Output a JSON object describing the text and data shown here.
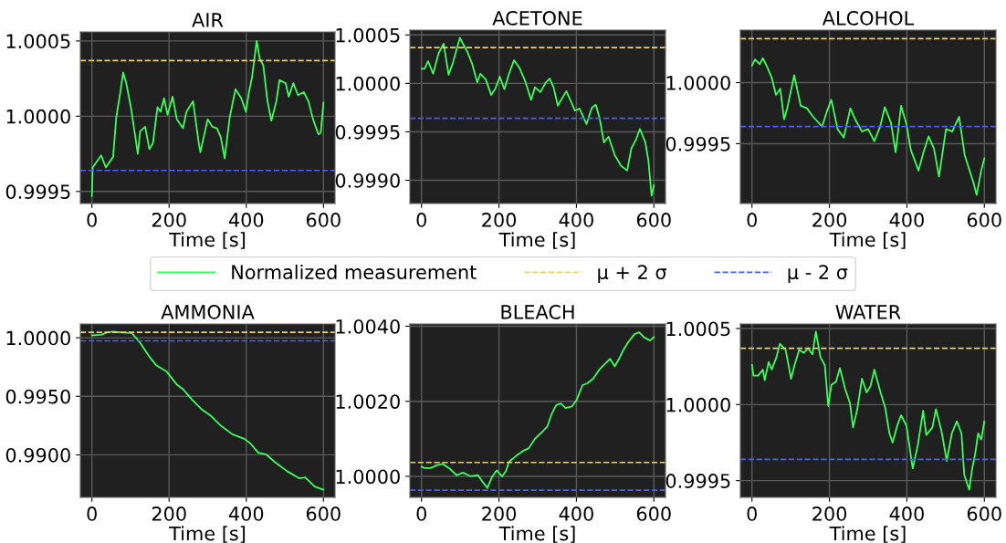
{
  "chart_data": [
    {
      "type": "line",
      "title": "AIR",
      "xlabel": "Time [s]",
      "xlim": [
        -30,
        630
      ],
      "xticks": [
        0,
        200,
        400,
        600
      ],
      "ylim": [
        0.99942,
        1.00056
      ],
      "yticks": [
        {
          "value": 0.9995,
          "label": "0.9995"
        },
        {
          "value": 1.0,
          "label": "1.0000"
        },
        {
          "value": 1.0005,
          "label": "1.0005"
        }
      ],
      "grid": true,
      "legend": "bottom",
      "series": [
        {
          "name": "Normalized measurement",
          "color": "#39ff5a",
          "x": [
            0,
            2,
            24,
            36,
            55,
            63,
            73,
            81,
            89,
            101,
            119,
            125,
            138,
            149,
            158,
            170,
            178,
            187,
            196,
            209,
            220,
            236,
            245,
            262,
            277,
            281,
            300,
            312,
            324,
            334,
            344,
            357,
            372,
            387,
            399,
            407,
            415,
            427,
            435,
            444,
            455,
            465,
            478,
            486,
            502,
            510,
            522,
            534,
            549,
            561,
            573,
            587,
            593,
            600
          ],
          "values": [
            0.99947,
            0.99966,
            0.99974,
            0.99966,
            0.99973,
            0.99999,
            1.00015,
            1.00029,
            1.00022,
            1.00006,
            0.99975,
            0.9999,
            0.99993,
            0.99978,
            0.99982,
            1.00006,
            1.00003,
            1.00012,
            1.00001,
            1.00013,
            0.99998,
            0.99992,
            1.00003,
            1.0001,
            0.99982,
            0.99976,
            0.99998,
            0.99993,
            0.99992,
            0.99986,
            0.99972,
            0.99999,
            1.00018,
            1.00012,
            1.00003,
            1.00016,
            1.00026,
            1.0005,
            1.00038,
            1.00034,
            1.0001,
            0.99997,
            1.0001,
            1.00024,
            1.00022,
            1.00013,
            1.00022,
            1.00014,
            1.00016,
            1.0001,
            0.99998,
            0.99988,
            0.99989,
            1.00009
          ]
        }
      ],
      "ref_lines": [
        {
          "axis": "y",
          "value": 1.00037,
          "label": "μ + 2 σ",
          "color": "#e6d36a",
          "line_style": "dashed"
        },
        {
          "axis": "y",
          "value": 0.99964,
          "label": "μ - 2 σ",
          "color": "#4a5cff",
          "line_style": "dashed"
        }
      ]
    },
    {
      "type": "line",
      "title": "ACETONE",
      "xlabel": "Time [s]",
      "xlim": [
        -30,
        630
      ],
      "xticks": [
        0,
        200,
        400,
        600
      ],
      "ylim": [
        0.99876,
        1.00055
      ],
      "yticks": [
        {
          "value": 0.999,
          "label": "0.9990"
        },
        {
          "value": 0.9995,
          "label": "0.9995"
        },
        {
          "value": 1.0,
          "label": "1.0000"
        },
        {
          "value": 1.0005,
          "label": "1.0005"
        }
      ],
      "grid": true,
      "series": [
        {
          "color": "#39ff5a",
          "x": [
            0,
            8,
            17,
            30,
            44,
            57,
            70,
            81,
            99,
            119,
            131,
            144,
            152,
            166,
            180,
            190,
            202,
            214,
            226,
            239,
            253,
            268,
            283,
            293,
            307,
            321,
            331,
            341,
            352,
            374,
            384,
            396,
            408,
            426,
            440,
            450,
            460,
            471,
            483,
            499,
            515,
            531,
            542,
            554,
            564,
            578,
            586,
            594,
            600
          ],
          "values": [
            1.00015,
            1.00015,
            1.00023,
            1.0001,
            1.00031,
            1.00041,
            1.00009,
            1.00021,
            1.00047,
            1.00032,
            1.0002,
            1.00001,
            1.0001,
            1.00004,
            0.99988,
            0.99994,
            1.00007,
            0.99994,
            1.0001,
            1.00024,
            1.00016,
            1.00002,
            0.99983,
            0.99996,
            0.99991,
            1.00001,
            1.00005,
            0.99996,
            0.99977,
            0.99992,
            0.99983,
            0.99972,
            0.99974,
            0.99958,
            0.99975,
            0.99978,
            0.99964,
            0.99939,
            0.99945,
            0.99926,
            0.99915,
            0.9991,
            0.99933,
            0.99942,
            0.99953,
            0.99939,
            0.9992,
            0.99884,
            0.99895
          ]
        }
      ],
      "ref_lines": [
        {
          "axis": "y",
          "value": 1.00037,
          "color": "#e6d36a",
          "line_style": "dashed"
        },
        {
          "axis": "y",
          "value": 0.99964,
          "color": "#4a5cff",
          "line_style": "dashed"
        }
      ]
    },
    {
      "type": "line",
      "title": "ALCOHOL",
      "xlabel": "Time [s]",
      "xlim": [
        -30,
        630
      ],
      "xticks": [
        0,
        200,
        400,
        600
      ],
      "ylim": [
        0.99901,
        1.00043
      ],
      "yticks": [
        {
          "value": 0.9995,
          "label": "0.9995"
        },
        {
          "value": 1.0,
          "label": "1.0000"
        }
      ],
      "grid": true,
      "series": [
        {
          "color": "#39ff5a",
          "x": [
            0,
            8,
            20,
            28,
            39,
            51,
            62,
            73,
            83,
            91,
            109,
            126,
            142,
            158,
            181,
            193,
            205,
            221,
            237,
            254,
            268,
            284,
            300,
            316,
            331,
            343,
            359,
            371,
            385,
            399,
            410,
            430,
            442,
            456,
            470,
            483,
            501,
            517,
            535,
            549,
            560,
            572,
            580,
            592,
            600
          ],
          "values": [
            1.00014,
            1.00019,
            1.00015,
            1.0002,
            1.00013,
            1.00004,
            0.9999,
            0.99995,
            0.9997,
            0.99979,
            1.00006,
            0.99981,
            0.99979,
            0.99972,
            0.99964,
            0.99976,
            0.99986,
            0.99962,
            0.99955,
            0.99979,
            0.99969,
            0.9996,
            0.99962,
            0.99952,
            0.99964,
            0.9998,
            0.99967,
            0.99943,
            0.99981,
            0.99966,
            0.99945,
            0.99928,
            0.99942,
            0.99956,
            0.99946,
            0.99923,
            0.99962,
            0.9996,
            0.99972,
            0.99941,
            0.9993,
            0.99918,
            0.99908,
            0.99928,
            0.99938
          ]
        }
      ],
      "ref_lines": [
        {
          "axis": "y",
          "value": 1.00036,
          "color": "#e6d36a",
          "line_style": "dashed"
        },
        {
          "axis": "y",
          "value": 0.99964,
          "color": "#4a5cff",
          "line_style": "dashed"
        }
      ]
    },
    {
      "type": "line",
      "title": "AMMONIA",
      "xlabel": "Time [s]",
      "xlim": [
        -30,
        630
      ],
      "xticks": [
        0,
        200,
        400,
        600
      ],
      "ylim": [
        0.98637,
        1.00118
      ],
      "yticks": [
        {
          "value": 0.99,
          "label": "0.9900"
        },
        {
          "value": 0.995,
          "label": "0.9950"
        },
        {
          "value": 1.0,
          "label": "1.0000"
        }
      ],
      "grid": true,
      "series": [
        {
          "color": "#39ff5a",
          "x": [
            0,
            24,
            40,
            55,
            79,
            103,
            126,
            150,
            166,
            194,
            221,
            237,
            261,
            285,
            308,
            332,
            364,
            395,
            411,
            431,
            451,
            474,
            506,
            537,
            553,
            577,
            600
          ],
          "values": [
            1.00021,
            1.00026,
            1.00047,
            1.00053,
            1.00045,
            1.00042,
            0.99953,
            0.99834,
            0.99768,
            0.9971,
            0.99597,
            0.99558,
            0.99466,
            0.99387,
            0.99334,
            0.99255,
            0.99176,
            0.99137,
            0.99097,
            0.99018,
            0.99005,
            0.98939,
            0.9886,
            0.988,
            0.98808,
            0.98729,
            0.98702
          ]
        }
      ],
      "ref_lines": [
        {
          "axis": "y",
          "value": 1.00047,
          "color": "#e6d36a",
          "line_style": "dashed"
        },
        {
          "axis": "y",
          "value": 0.99974,
          "color": "#4a5cff",
          "line_style": "dashed"
        }
      ]
    },
    {
      "type": "line",
      "title": "BLEACH",
      "xlabel": "Time [s]",
      "xlim": [
        -30,
        630
      ],
      "xticks": [
        0,
        200,
        400,
        600
      ],
      "ylim": [
        0.99944,
        1.00406
      ],
      "yticks": [
        {
          "value": 1.0,
          "label": "1.0000"
        },
        {
          "value": 1.002,
          "label": "1.0020"
        },
        {
          "value": 1.004,
          "label": "1.0040"
        }
      ],
      "grid": true,
      "series": [
        {
          "color": "#39ff5a",
          "x": [
            0,
            8,
            24,
            40,
            55,
            71,
            91,
            107,
            127,
            146,
            158,
            170,
            182,
            194,
            208,
            218,
            226,
            245,
            261,
            277,
            293,
            309,
            325,
            336,
            348,
            360,
            372,
            388,
            400,
            416,
            428,
            443,
            459,
            471,
            487,
            499,
            510,
            522,
            534,
            550,
            562,
            574,
            590,
            600
          ],
          "values": [
            1.00026,
            1.00022,
            1.00022,
            1.0003,
            1.00033,
            1.00022,
            1.00003,
            1.0001,
            1.0,
            1.00003,
            0.99985,
            0.99969,
            0.99998,
            1.00016,
            1.0,
            1.00014,
            1.00039,
            1.00055,
            1.00067,
            1.00075,
            1.001,
            1.00116,
            1.00133,
            1.00166,
            1.0019,
            1.00194,
            1.00182,
            1.00186,
            1.00202,
            1.00243,
            1.00248,
            1.0026,
            1.00284,
            1.00297,
            1.00313,
            1.00293,
            1.00313,
            1.00338,
            1.00358,
            1.00379,
            1.00384,
            1.00371,
            1.00362,
            1.00371
          ]
        }
      ],
      "ref_lines": [
        {
          "axis": "y",
          "value": 1.00037,
          "color": "#e6d36a",
          "line_style": "dashed"
        },
        {
          "axis": "y",
          "value": 0.99963,
          "color": "#4a5cff",
          "line_style": "dashed"
        }
      ]
    },
    {
      "type": "line",
      "title": "WATER",
      "xlabel": "Time [s]",
      "xlim": [
        -30,
        630
      ],
      "xticks": [
        0,
        200,
        400,
        600
      ],
      "ylim": [
        0.99939,
        1.00053
      ],
      "yticks": [
        {
          "value": 0.9995,
          "label": "0.9995"
        },
        {
          "value": 1.0,
          "label": "1.0000"
        },
        {
          "value": 1.0005,
          "label": "1.0005"
        }
      ],
      "grid": true,
      "series": [
        {
          "color": "#39ff5a",
          "x": [
            0,
            4,
            16,
            28,
            33,
            43,
            51,
            63,
            72,
            87,
            101,
            110,
            122,
            134,
            145,
            156,
            165,
            177,
            188,
            197,
            205,
            217,
            227,
            241,
            253,
            261,
            272,
            284,
            296,
            306,
            316,
            332,
            344,
            355,
            363,
            375,
            385,
            399,
            415,
            428,
            442,
            450,
            466,
            475,
            489,
            503,
            516,
            529,
            541,
            548,
            561,
            568,
            576,
            584,
            592,
            600
          ],
          "values": [
            1.00026,
            1.00019,
            1.00019,
            1.00023,
            1.00016,
            1.00028,
            1.00023,
            1.00031,
            1.0004,
            1.00036,
            1.00017,
            1.00026,
            1.00036,
            1.00034,
            1.00037,
            1.00033,
            1.00048,
            1.00031,
            1.00026,
            0.99999,
            1.00013,
            1.00015,
            1.00024,
            1.0001,
            1.00001,
            0.99985,
            0.99997,
            1.00017,
            1.00008,
            1.00012,
            1.00023,
            1.00008,
            0.99998,
            0.99981,
            0.99975,
            0.99986,
            0.99993,
            0.99986,
            0.99958,
            0.99973,
            0.99996,
            0.9998,
            0.99985,
            0.99997,
            0.99983,
            0.99963,
            0.99981,
            0.99989,
            0.99981,
            0.99954,
            0.99944,
            0.99957,
            0.99967,
            0.99981,
            0.99977,
            0.99989
          ]
        }
      ],
      "ref_lines": [
        {
          "axis": "y",
          "value": 1.00037,
          "color": "#e6d36a",
          "line_style": "dashed"
        },
        {
          "axis": "y",
          "value": 0.99964,
          "color": "#4a5cff",
          "line_style": "dashed"
        }
      ]
    }
  ]
}
